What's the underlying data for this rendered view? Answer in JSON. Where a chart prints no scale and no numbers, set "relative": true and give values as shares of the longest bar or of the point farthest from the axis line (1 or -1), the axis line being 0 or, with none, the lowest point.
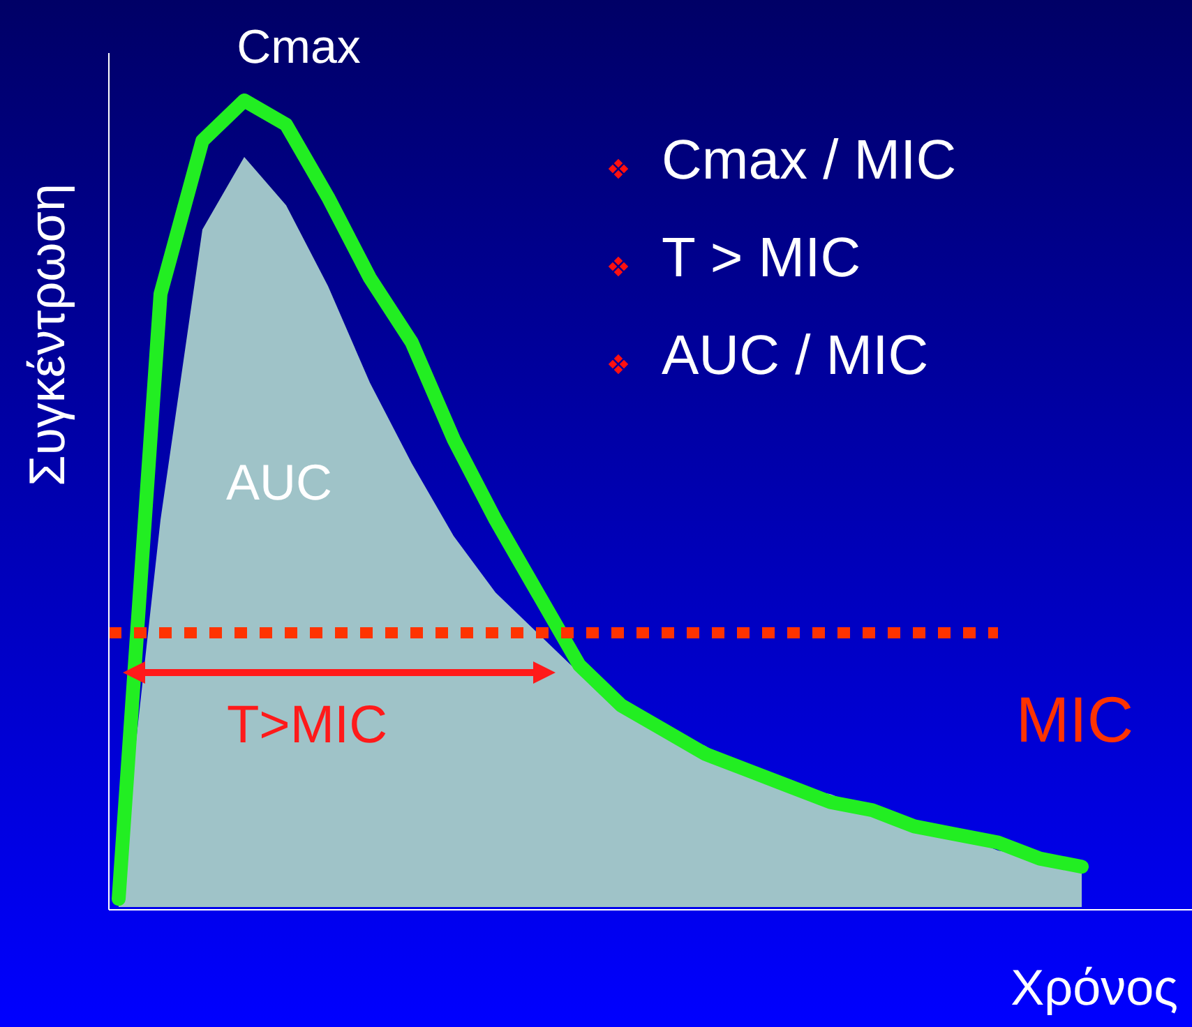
{
  "chart_data": {
    "type": "line",
    "relative": true,
    "xlabel": "Χρόνος",
    "ylabel": "Συγκέντρωση",
    "categories": [
      null,
      null,
      null,
      null,
      null,
      null,
      null,
      null,
      null,
      null,
      null,
      null,
      null,
      null,
      null,
      null,
      null,
      null,
      null,
      null,
      null,
      null,
      null,
      null
    ],
    "series": [
      {
        "type": "area",
        "color": "#9fc3c8",
        "values": [
          0.01,
          0.48,
          0.84,
          0.93,
          0.87,
          0.77,
          0.65,
          0.55,
          0.46,
          0.39,
          0.34,
          0.29,
          0.25,
          0.22,
          0.2,
          0.17,
          0.15,
          0.14,
          0.12,
          0.1,
          0.09,
          0.07,
          0.06,
          0.05
        ]
      },
      {
        "type": "line",
        "color": "#22ee22",
        "values": [
          0.01,
          0.76,
          0.95,
          1,
          0.97,
          0.88,
          0.78,
          0.7,
          0.58,
          0.48,
          0.39,
          0.3,
          0.25,
          0.22,
          0.19,
          0.17,
          0.15,
          0.13,
          0.12,
          0.1,
          0.09,
          0.08,
          0.06,
          0.05
        ]
      }
    ],
    "ref_lines": [
      {
        "axis": "y",
        "value": 0.34,
        "label": "MIC",
        "color": "#ff3300",
        "line_style": "dotted"
      }
    ],
    "annotations": [
      "Cmax",
      "AUC",
      "T>MIC",
      "Cmax / MIC",
      "T > MIC",
      "AUC / MIC"
    ]
  }
}
